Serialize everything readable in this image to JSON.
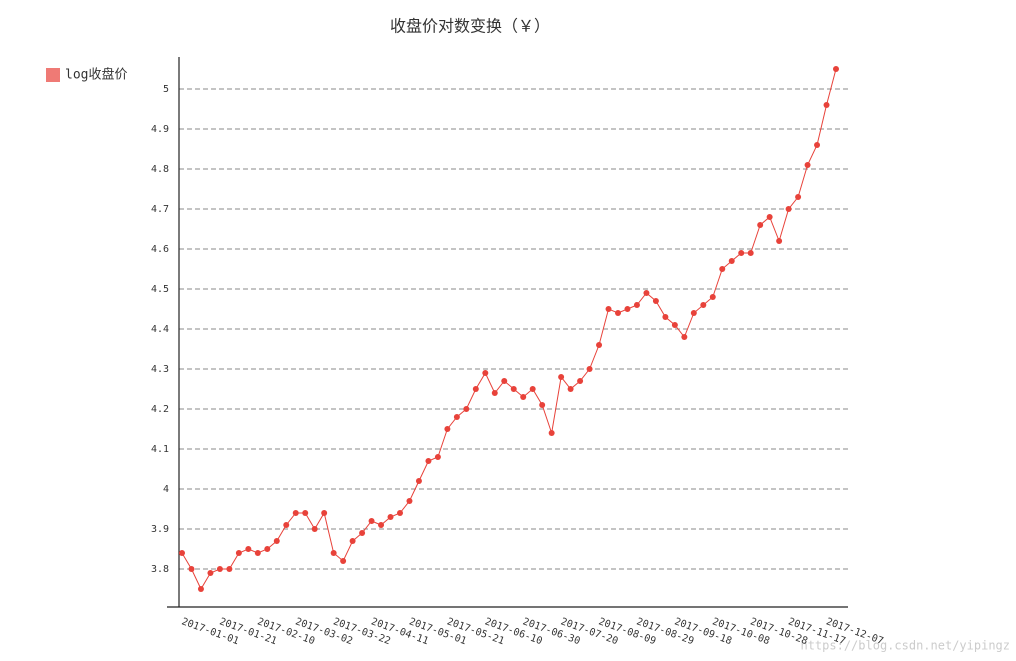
{
  "chart_data": {
    "type": "line",
    "title": "收盘价对数变换（￥）",
    "categories": [
      "2017-01-01",
      null,
      null,
      null,
      "2017-01-21",
      null,
      null,
      null,
      "2017-02-10",
      null,
      null,
      null,
      "2017-03-02",
      null,
      null,
      null,
      "2017-03-22",
      null,
      null,
      null,
      "2017-04-11",
      null,
      null,
      null,
      "2017-05-01",
      null,
      null,
      null,
      "2017-05-21",
      null,
      null,
      null,
      "2017-06-10",
      null,
      null,
      null,
      "2017-06-30",
      null,
      null,
      null,
      "2017-07-20",
      null,
      null,
      null,
      "2017-08-09",
      null,
      null,
      null,
      "2017-08-29",
      null,
      null,
      null,
      "2017-09-18",
      null,
      null,
      null,
      "2017-10-08",
      null,
      null,
      null,
      "2017-10-28",
      null,
      null,
      null,
      "2017-11-17",
      null,
      null,
      null,
      "2017-12-07",
      null
    ],
    "series": [
      {
        "name": "log收盘价",
        "color": "#e8423a",
        "values": [
          3.84,
          3.8,
          3.75,
          3.79,
          3.8,
          3.8,
          3.84,
          3.85,
          3.84,
          3.85,
          3.87,
          3.91,
          3.94,
          3.94,
          3.9,
          3.94,
          3.84,
          3.82,
          3.87,
          3.89,
          3.92,
          3.91,
          3.93,
          3.94,
          3.97,
          4.02,
          4.07,
          4.08,
          4.15,
          4.18,
          4.2,
          4.25,
          4.29,
          4.24,
          4.27,
          4.25,
          4.23,
          4.25,
          4.21,
          4.14,
          4.28,
          4.25,
          4.27,
          4.3,
          4.36,
          4.45,
          4.44,
          4.45,
          4.46,
          4.49,
          4.47,
          4.43,
          4.41,
          4.38,
          4.44,
          4.46,
          4.48,
          4.55,
          4.57,
          4.59,
          4.59,
          4.66,
          4.68,
          4.62,
          4.7,
          4.73,
          4.81,
          4.86,
          4.96,
          5.05
        ]
      }
    ],
    "ylim": [
      3.71,
      5.08
    ],
    "yticks": [
      3.8,
      3.9,
      4,
      4.1,
      4.2,
      4.3,
      4.4,
      4.5,
      4.6,
      4.7,
      4.8,
      4.9,
      5
    ],
    "grid": true,
    "legend": "top-left",
    "watermark": "https://blog.csdn.net/yipingz"
  }
}
